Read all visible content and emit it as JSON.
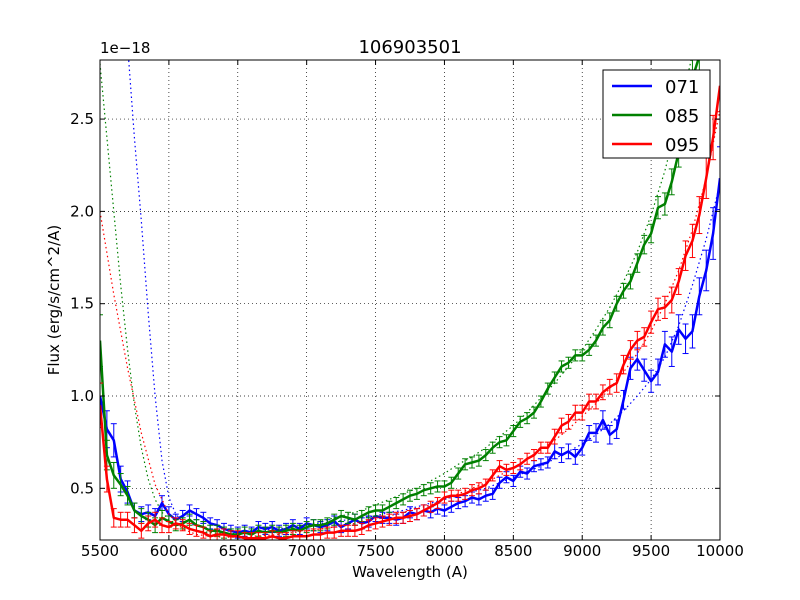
{
  "chart_data": {
    "type": "line",
    "title": "106903501",
    "xlabel": "Wavelength (A)",
    "ylabel": "Flux (erg/s/cm^2/A)",
    "offset_text": "1e−18",
    "xlim": [
      5500,
      10000
    ],
    "ylim": [
      0.22,
      2.82
    ],
    "xticks": [
      5500,
      6000,
      6500,
      7000,
      7500,
      8000,
      8500,
      9000,
      9500,
      10000
    ],
    "xtick_labels": [
      "5500",
      "6000",
      "6500",
      "7000",
      "7500",
      "8000",
      "8500",
      "9000",
      "9500",
      "10000"
    ],
    "yticks": [
      0.5,
      1.0,
      1.5,
      2.0,
      2.5
    ],
    "ytick_labels": [
      "0.5",
      "1.0",
      "1.5",
      "2.0",
      "2.5"
    ],
    "grid": true,
    "legend_position": "top-right",
    "series": [
      {
        "name": "071",
        "color": "#0000ff",
        "x": [
          5500,
          5550,
          5600,
          5650,
          5700,
          5750,
          5800,
          5850,
          5900,
          5950,
          6000,
          6050,
          6100,
          6150,
          6200,
          6250,
          6300,
          6350,
          6400,
          6450,
          6500,
          6550,
          6600,
          6650,
          6700,
          6750,
          6800,
          6850,
          6900,
          6950,
          7000,
          7050,
          7100,
          7150,
          7200,
          7250,
          7300,
          7350,
          7400,
          7450,
          7500,
          7550,
          7600,
          7650,
          7700,
          7750,
          7800,
          7850,
          7900,
          7950,
          8000,
          8050,
          8100,
          8150,
          8200,
          8250,
          8300,
          8350,
          8400,
          8450,
          8500,
          8550,
          8600,
          8650,
          8700,
          8750,
          8800,
          8850,
          8900,
          8950,
          9000,
          9050,
          9100,
          9150,
          9200,
          9250,
          9300,
          9350,
          9400,
          9450,
          9500,
          9550,
          9600,
          9650,
          9700,
          9750,
          9800,
          9850,
          9900,
          9950,
          10000
        ],
        "values": [
          1.0,
          0.82,
          0.76,
          0.55,
          0.48,
          0.38,
          0.36,
          0.37,
          0.35,
          0.42,
          0.36,
          0.33,
          0.35,
          0.38,
          0.36,
          0.34,
          0.31,
          0.3,
          0.28,
          0.27,
          0.26,
          0.27,
          0.26,
          0.29,
          0.28,
          0.29,
          0.27,
          0.28,
          0.3,
          0.28,
          0.31,
          0.3,
          0.29,
          0.3,
          0.32,
          0.29,
          0.31,
          0.33,
          0.31,
          0.32,
          0.35,
          0.34,
          0.34,
          0.33,
          0.34,
          0.37,
          0.36,
          0.38,
          0.37,
          0.39,
          0.38,
          0.4,
          0.42,
          0.43,
          0.45,
          0.44,
          0.46,
          0.47,
          0.53,
          0.56,
          0.54,
          0.59,
          0.58,
          0.62,
          0.63,
          0.64,
          0.7,
          0.68,
          0.7,
          0.67,
          0.72,
          0.8,
          0.8,
          0.87,
          0.79,
          0.82,
          0.98,
          1.15,
          1.2,
          1.14,
          1.08,
          1.13,
          1.28,
          1.24,
          1.36,
          1.31,
          1.35,
          1.54,
          1.68,
          1.88,
          2.18
        ],
        "errors": [
          0.15,
          0.1,
          0.09,
          0.07,
          0.06,
          0.04,
          0.04,
          0.04,
          0.04,
          0.04,
          0.04,
          0.03,
          0.03,
          0.03,
          0.03,
          0.03,
          0.03,
          0.03,
          0.03,
          0.03,
          0.03,
          0.03,
          0.03,
          0.03,
          0.03,
          0.03,
          0.03,
          0.03,
          0.03,
          0.03,
          0.03,
          0.03,
          0.03,
          0.03,
          0.03,
          0.03,
          0.03,
          0.03,
          0.03,
          0.03,
          0.03,
          0.03,
          0.03,
          0.03,
          0.03,
          0.03,
          0.03,
          0.03,
          0.03,
          0.03,
          0.03,
          0.03,
          0.03,
          0.03,
          0.03,
          0.03,
          0.03,
          0.03,
          0.03,
          0.03,
          0.03,
          0.03,
          0.03,
          0.03,
          0.03,
          0.03,
          0.04,
          0.04,
          0.04,
          0.04,
          0.04,
          0.04,
          0.05,
          0.05,
          0.05,
          0.05,
          0.05,
          0.06,
          0.06,
          0.06,
          0.06,
          0.07,
          0.07,
          0.08,
          0.08,
          0.08,
          0.09,
          0.1,
          0.11,
          0.14,
          0.17
        ],
        "fit_x": [
          5650,
          5700,
          5750,
          5800,
          5850,
          5900,
          5950,
          6000,
          6050,
          6100,
          6200,
          6300,
          6400,
          6500,
          6600,
          6700,
          6800,
          6900,
          7000,
          7100,
          7200,
          7300,
          7400,
          7500,
          7600,
          7700,
          7800,
          7900,
          8000,
          8100,
          8200,
          8300,
          8400,
          8500,
          8600,
          8700,
          8800,
          8900,
          9000,
          9100,
          9200,
          9300,
          9400,
          9500,
          9600,
          9700,
          9800,
          9900,
          10000
        ],
        "fit_values": [
          3.4,
          2.9,
          2.4,
          1.95,
          1.45,
          1.0,
          0.65,
          0.45,
          0.36,
          0.32,
          0.3,
          0.28,
          0.27,
          0.265,
          0.27,
          0.275,
          0.28,
          0.29,
          0.3,
          0.31,
          0.32,
          0.33,
          0.34,
          0.35,
          0.37,
          0.38,
          0.4,
          0.42,
          0.44,
          0.46,
          0.48,
          0.5,
          0.53,
          0.56,
          0.59,
          0.62,
          0.66,
          0.7,
          0.74,
          0.79,
          0.85,
          0.92,
          1.0,
          1.09,
          1.21,
          1.38,
          1.6,
          1.85,
          2.15
        ]
      },
      {
        "name": "085",
        "color": "#008000",
        "x": [
          5500,
          5550,
          5600,
          5650,
          5700,
          5750,
          5800,
          5850,
          5900,
          5950,
          6000,
          6050,
          6100,
          6150,
          6200,
          6250,
          6300,
          6350,
          6400,
          6450,
          6500,
          6550,
          6600,
          6650,
          6700,
          6750,
          6800,
          6850,
          6900,
          6950,
          7000,
          7050,
          7100,
          7150,
          7200,
          7250,
          7300,
          7350,
          7400,
          7450,
          7500,
          7550,
          7600,
          7650,
          7700,
          7750,
          7800,
          7850,
          7900,
          7950,
          8000,
          8050,
          8100,
          8150,
          8200,
          8250,
          8300,
          8350,
          8400,
          8450,
          8500,
          8550,
          8600,
          8650,
          8700,
          8750,
          8800,
          8850,
          8900,
          8950,
          9000,
          9050,
          9100,
          9150,
          9200,
          9250,
          9300,
          9350,
          9400,
          9450,
          9500,
          9550,
          9600,
          9650,
          9700,
          9750,
          9800,
          9850
        ],
        "values": [
          1.3,
          0.68,
          0.57,
          0.52,
          0.46,
          0.38,
          0.35,
          0.33,
          0.3,
          0.34,
          0.32,
          0.3,
          0.31,
          0.33,
          0.3,
          0.29,
          0.27,
          0.27,
          0.26,
          0.25,
          0.25,
          0.26,
          0.25,
          0.27,
          0.26,
          0.27,
          0.26,
          0.27,
          0.28,
          0.27,
          0.29,
          0.3,
          0.3,
          0.31,
          0.33,
          0.35,
          0.34,
          0.33,
          0.35,
          0.37,
          0.38,
          0.38,
          0.4,
          0.42,
          0.44,
          0.46,
          0.47,
          0.49,
          0.5,
          0.51,
          0.51,
          0.53,
          0.58,
          0.63,
          0.64,
          0.65,
          0.68,
          0.72,
          0.75,
          0.76,
          0.81,
          0.86,
          0.88,
          0.91,
          0.97,
          1.04,
          1.1,
          1.16,
          1.18,
          1.22,
          1.22,
          1.25,
          1.3,
          1.37,
          1.41,
          1.5,
          1.57,
          1.62,
          1.72,
          1.82,
          1.88,
          2.02,
          2.04,
          2.16,
          2.32,
          2.53,
          2.72,
          2.84
        ],
        "errors": [
          0.14,
          0.08,
          0.07,
          0.06,
          0.05,
          0.04,
          0.04,
          0.04,
          0.04,
          0.04,
          0.03,
          0.03,
          0.03,
          0.03,
          0.03,
          0.03,
          0.03,
          0.03,
          0.03,
          0.03,
          0.03,
          0.03,
          0.03,
          0.03,
          0.03,
          0.03,
          0.03,
          0.03,
          0.03,
          0.03,
          0.03,
          0.03,
          0.03,
          0.03,
          0.03,
          0.03,
          0.03,
          0.03,
          0.03,
          0.03,
          0.03,
          0.03,
          0.03,
          0.03,
          0.03,
          0.03,
          0.03,
          0.03,
          0.03,
          0.03,
          0.03,
          0.03,
          0.03,
          0.03,
          0.03,
          0.03,
          0.03,
          0.03,
          0.03,
          0.03,
          0.03,
          0.03,
          0.03,
          0.03,
          0.03,
          0.03,
          0.03,
          0.03,
          0.03,
          0.03,
          0.03,
          0.03,
          0.03,
          0.04,
          0.04,
          0.04,
          0.04,
          0.04,
          0.05,
          0.05,
          0.05,
          0.06,
          0.06,
          0.07,
          0.08,
          0.09,
          0.1,
          0.12
        ],
        "fit_x": [
          5500,
          5550,
          5600,
          5650,
          5700,
          5750,
          5800,
          5850,
          5900,
          5950,
          6000,
          6100,
          6200,
          6300,
          6400,
          6500,
          6600,
          6700,
          6800,
          6900,
          7000,
          7100,
          7200,
          7300,
          7400,
          7500,
          7600,
          7700,
          7800,
          7900,
          8000,
          8100,
          8200,
          8300,
          8400,
          8500,
          8600,
          8700,
          8800,
          8900,
          9000,
          9100,
          9200,
          9300,
          9400,
          9500,
          9600,
          9700,
          9800,
          9900
        ],
        "fit_values": [
          2.8,
          2.4,
          2.0,
          1.6,
          1.25,
          0.95,
          0.72,
          0.55,
          0.44,
          0.37,
          0.33,
          0.29,
          0.27,
          0.26,
          0.255,
          0.255,
          0.26,
          0.265,
          0.275,
          0.29,
          0.3,
          0.32,
          0.34,
          0.36,
          0.38,
          0.41,
          0.44,
          0.47,
          0.5,
          0.54,
          0.58,
          0.63,
          0.67,
          0.72,
          0.78,
          0.84,
          0.91,
          0.99,
          1.07,
          1.16,
          1.25,
          1.36,
          1.48,
          1.62,
          1.78,
          1.98,
          2.22,
          2.52,
          2.85,
          3.2
        ]
      },
      {
        "name": "095",
        "color": "#ff0000",
        "x": [
          5500,
          5550,
          5600,
          5650,
          5700,
          5750,
          5800,
          5850,
          5900,
          5950,
          6000,
          6050,
          6100,
          6150,
          6200,
          6250,
          6300,
          6350,
          6400,
          6450,
          6500,
          6550,
          6600,
          6650,
          6700,
          6750,
          6800,
          6850,
          6900,
          6950,
          7000,
          7050,
          7100,
          7150,
          7200,
          7250,
          7300,
          7350,
          7400,
          7450,
          7500,
          7550,
          7600,
          7650,
          7700,
          7750,
          7800,
          7850,
          7900,
          7950,
          8000,
          8050,
          8100,
          8150,
          8200,
          8250,
          8300,
          8350,
          8400,
          8450,
          8500,
          8550,
          8600,
          8650,
          8700,
          8750,
          8800,
          8850,
          8900,
          8950,
          9000,
          9050,
          9100,
          9150,
          9200,
          9250,
          9300,
          9350,
          9400,
          9450,
          9500,
          9550,
          9600,
          9650,
          9700,
          9750,
          9800,
          9850,
          9900,
          9950,
          10000
        ],
        "values": [
          0.95,
          0.55,
          0.34,
          0.33,
          0.33,
          0.3,
          0.27,
          0.31,
          0.33,
          0.3,
          0.29,
          0.31,
          0.3,
          0.28,
          0.27,
          0.26,
          0.24,
          0.25,
          0.25,
          0.24,
          0.24,
          0.23,
          0.23,
          0.23,
          0.23,
          0.24,
          0.23,
          0.23,
          0.24,
          0.24,
          0.24,
          0.25,
          0.25,
          0.26,
          0.26,
          0.27,
          0.27,
          0.27,
          0.28,
          0.3,
          0.31,
          0.32,
          0.33,
          0.34,
          0.34,
          0.35,
          0.36,
          0.38,
          0.4,
          0.42,
          0.45,
          0.46,
          0.46,
          0.47,
          0.49,
          0.5,
          0.52,
          0.57,
          0.62,
          0.6,
          0.61,
          0.63,
          0.66,
          0.68,
          0.72,
          0.72,
          0.78,
          0.84,
          0.86,
          0.91,
          0.91,
          0.97,
          0.97,
          1.02,
          1.05,
          1.07,
          1.17,
          1.25,
          1.3,
          1.32,
          1.4,
          1.47,
          1.48,
          1.52,
          1.62,
          1.76,
          1.84,
          1.98,
          2.18,
          2.4,
          2.68
        ],
        "errors": [
          0.12,
          0.07,
          0.05,
          0.04,
          0.04,
          0.04,
          0.04,
          0.04,
          0.04,
          0.04,
          0.03,
          0.03,
          0.03,
          0.03,
          0.03,
          0.03,
          0.03,
          0.03,
          0.03,
          0.03,
          0.03,
          0.03,
          0.03,
          0.03,
          0.03,
          0.03,
          0.03,
          0.03,
          0.03,
          0.03,
          0.03,
          0.03,
          0.03,
          0.03,
          0.03,
          0.03,
          0.03,
          0.03,
          0.03,
          0.03,
          0.03,
          0.03,
          0.03,
          0.03,
          0.03,
          0.03,
          0.03,
          0.03,
          0.03,
          0.03,
          0.03,
          0.03,
          0.03,
          0.03,
          0.03,
          0.03,
          0.03,
          0.03,
          0.03,
          0.03,
          0.03,
          0.03,
          0.03,
          0.03,
          0.03,
          0.03,
          0.04,
          0.04,
          0.04,
          0.04,
          0.04,
          0.04,
          0.04,
          0.04,
          0.04,
          0.05,
          0.05,
          0.05,
          0.05,
          0.05,
          0.06,
          0.06,
          0.06,
          0.07,
          0.07,
          0.08,
          0.09,
          0.1,
          0.11,
          0.12,
          0.14
        ],
        "fit_x": [
          5500,
          5600,
          5700,
          5800,
          5900,
          6000,
          6100,
          6200,
          6300,
          6400,
          6500,
          6600,
          6700,
          6800,
          6900,
          7000,
          7100,
          7200,
          7300,
          7400,
          7500,
          7600,
          7700,
          7800,
          7900,
          8000,
          8100,
          8200,
          8300,
          8400,
          8500,
          8600,
          8700,
          8800,
          8900,
          9000,
          9100,
          9200,
          9300,
          9400,
          9500,
          9600,
          9700,
          9800,
          9900,
          10000
        ],
        "fit_values": [
          2.0,
          1.55,
          1.15,
          0.8,
          0.52,
          0.36,
          0.28,
          0.25,
          0.24,
          0.235,
          0.235,
          0.24,
          0.245,
          0.25,
          0.26,
          0.27,
          0.28,
          0.29,
          0.3,
          0.32,
          0.33,
          0.35,
          0.37,
          0.39,
          0.41,
          0.44,
          0.47,
          0.5,
          0.53,
          0.57,
          0.61,
          0.66,
          0.71,
          0.76,
          0.82,
          0.89,
          0.96,
          1.04,
          1.13,
          1.23,
          1.35,
          1.5,
          1.68,
          1.9,
          2.18,
          2.55
        ]
      }
    ]
  }
}
